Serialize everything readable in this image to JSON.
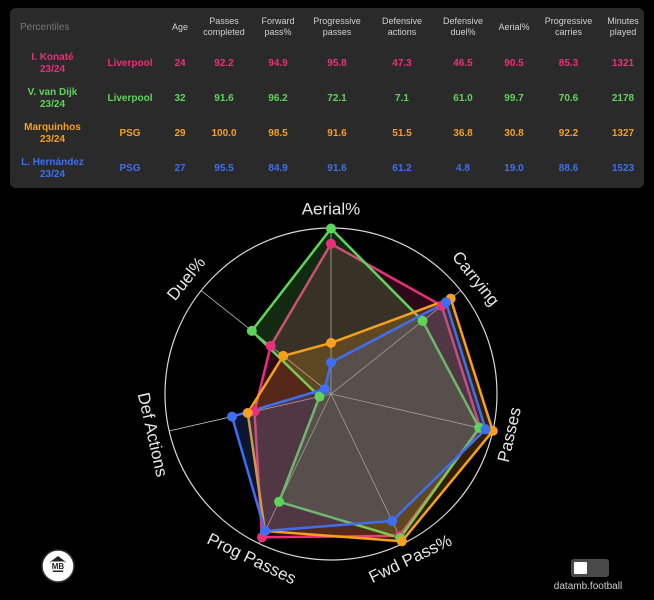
{
  "table": {
    "corner_label": "Percentiles",
    "columns": [
      "Age",
      "Passes completed",
      "Forward pass%",
      "Progressive passes",
      "Defensive actions",
      "Defensive duel%",
      "Aerial%",
      "Progressive carries",
      "Minutes played"
    ],
    "rows": [
      {
        "name": "I. Konaté",
        "season": "23/24",
        "team": "Liverpool",
        "color": "#e8307a",
        "values": [
          "24",
          "92.2",
          "94.9",
          "95.8",
          "47.3",
          "46.5",
          "90.5",
          "85.3",
          "1321"
        ]
      },
      {
        "name": "V. van Dijk",
        "season": "23/24",
        "team": "Liverpool",
        "color": "#5fd35a",
        "values": [
          "32",
          "91.6",
          "96.2",
          "72.1",
          "7.1",
          "61.0",
          "99.7",
          "70.6",
          "2178"
        ]
      },
      {
        "name": "Marquinhos",
        "season": "23/24",
        "team": "PSG",
        "color": "#f5a020",
        "values": [
          "29",
          "100.0",
          "98.5",
          "91.6",
          "51.5",
          "36.8",
          "30.8",
          "92.2",
          "1327"
        ]
      },
      {
        "name": "L. Hernández",
        "season": "23/24",
        "team": "PSG",
        "color": "#3f6ff0",
        "values": [
          "27",
          "95.5",
          "84.9",
          "91.6",
          "61.2",
          "4.8",
          "19.0",
          "88.6",
          "1523"
        ]
      }
    ]
  },
  "chart_data": {
    "type": "radar",
    "axes": [
      "Aerial%",
      "Carrying",
      "Passes",
      "Fwd Pass%",
      "Prog Passes",
      "Def Actions",
      "Duel%"
    ],
    "range": [
      0,
      100
    ],
    "series": [
      {
        "name": "I. Konaté",
        "color": "#e8307a",
        "values": [
          90.5,
          85.3,
          92.2,
          94.9,
          95.8,
          47.3,
          46.5
        ]
      },
      {
        "name": "V. van Dijk",
        "color": "#5fd35a",
        "values": [
          99.7,
          70.6,
          91.6,
          96.2,
          72.1,
          7.1,
          61.0
        ]
      },
      {
        "name": "Marquinhos",
        "color": "#f5a020",
        "values": [
          30.8,
          92.2,
          100.0,
          98.5,
          91.6,
          51.5,
          36.8
        ]
      },
      {
        "name": "L. Hernández",
        "color": "#3f6ff0",
        "values": [
          19.0,
          88.6,
          95.5,
          84.9,
          91.6,
          61.2,
          4.8
        ]
      }
    ]
  },
  "logo_text": "MB",
  "credit": "datamb.football"
}
